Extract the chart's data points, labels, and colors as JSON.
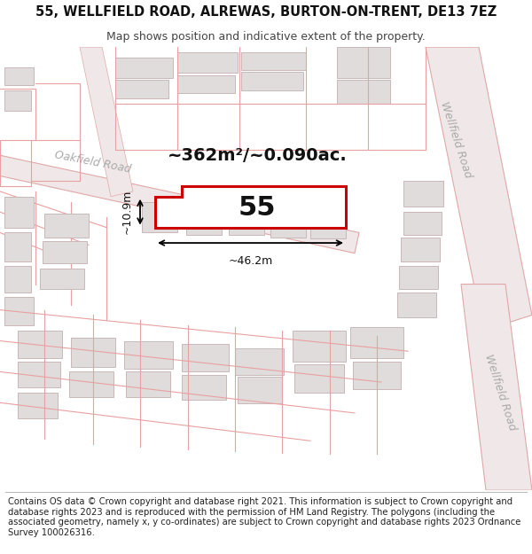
{
  "title": "55, WELLFIELD ROAD, ALREWAS, BURTON-ON-TRENT, DE13 7EZ",
  "subtitle": "Map shows position and indicative extent of the property.",
  "footer": "Contains OS data © Crown copyright and database right 2021. This information is subject to Crown copyright and database rights 2023 and is reproduced with the permission of HM Land Registry. The polygons (including the associated geometry, namely x, y co-ordinates) are subject to Crown copyright and database rights 2023 Ordnance Survey 100026316.",
  "area_text": "~362m²/~0.090ac.",
  "width_label": "~46.2m",
  "height_label": "~10.9m",
  "bg_color": "#ffffff",
  "map_bg": "#ffffff",
  "parcel_line_color": "#e8a0a0",
  "building_fill": "#e0dcdc",
  "building_stroke": "#c8b8b8",
  "road_fill": "#f0e8e8",
  "road_stroke": "#e0a8a8",
  "highlight_fill": "#ffffff",
  "highlight_stroke": "#cc0000",
  "road_label_color": "#aaaaaa",
  "title_fontsize": 10.5,
  "subtitle_fontsize": 9,
  "footer_fontsize": 7.2,
  "area_fontsize": 14,
  "number_fontsize": 22,
  "dim_fontsize": 9,
  "road_label_fontsize": 9,
  "highlight_lw": 2.2,
  "parcel_lw": 0.8,
  "building_lw": 0.7
}
